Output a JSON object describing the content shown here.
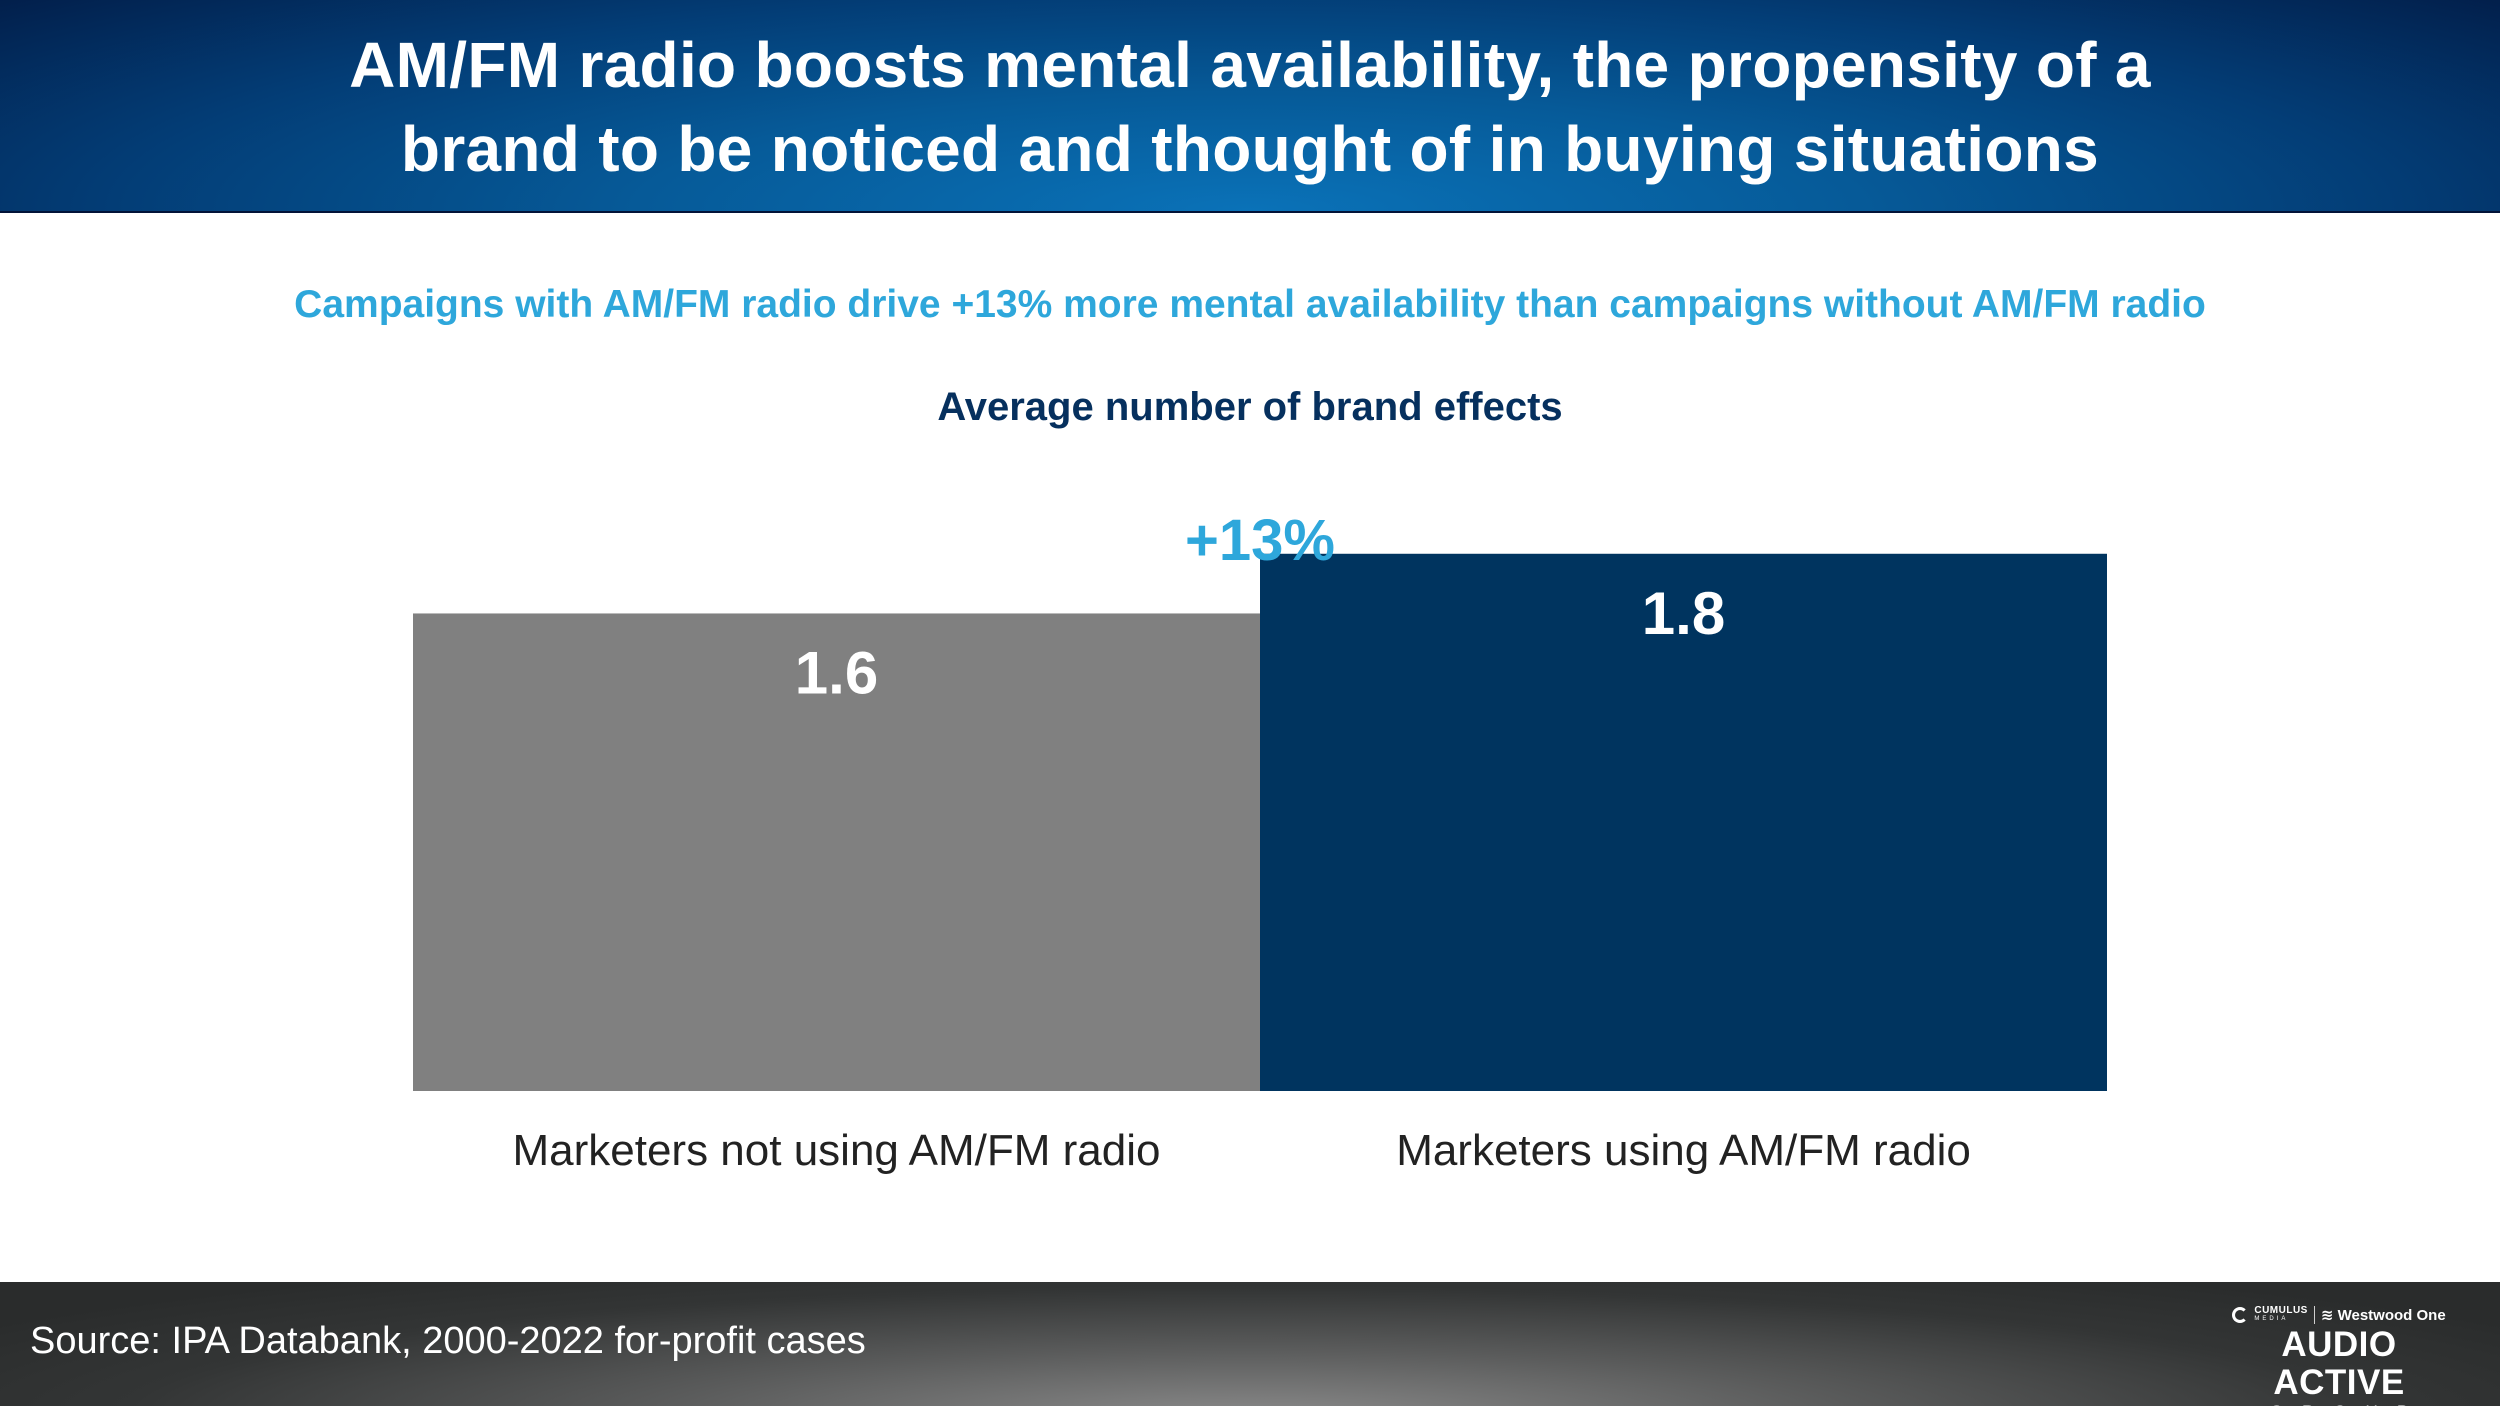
{
  "header": {
    "title_line1": "AM/FM radio boosts mental availability, the propensity of a",
    "title_line2": "brand to be noticed and thought of in buying situations"
  },
  "subtitle": "Campaigns with AM/FM radio drive +13% more mental availability than campaigns without AM/FM radio",
  "footer": {
    "source": "Source: IPA Databank, 2000-2022 for-profit cases",
    "logo": {
      "cumulus": "CUMULUS",
      "cumulus_sub": "MEDIA",
      "westwood": "Westwood One",
      "main": "AUDIO ACTIVE",
      "group": "GROUP"
    }
  },
  "colors": {
    "accent_cyan": "#2ea7db",
    "navy": "#00345f",
    "gray": "#808080",
    "title_navy": "#06305e"
  },
  "chart_data": {
    "type": "bar",
    "title": "Average number of brand effects",
    "categories": [
      "Marketers not using AM/FM radio",
      "Marketers using AM/FM radio"
    ],
    "values": [
      1.6,
      1.8
    ],
    "value_labels": [
      "1.6",
      "1.8"
    ],
    "bar_colors": [
      "#808080",
      "#00345f"
    ],
    "annotation": "+13%",
    "xlabel": "",
    "ylabel": "",
    "ylim": [
      0,
      2.6
    ],
    "grid": false,
    "legend": "none"
  }
}
